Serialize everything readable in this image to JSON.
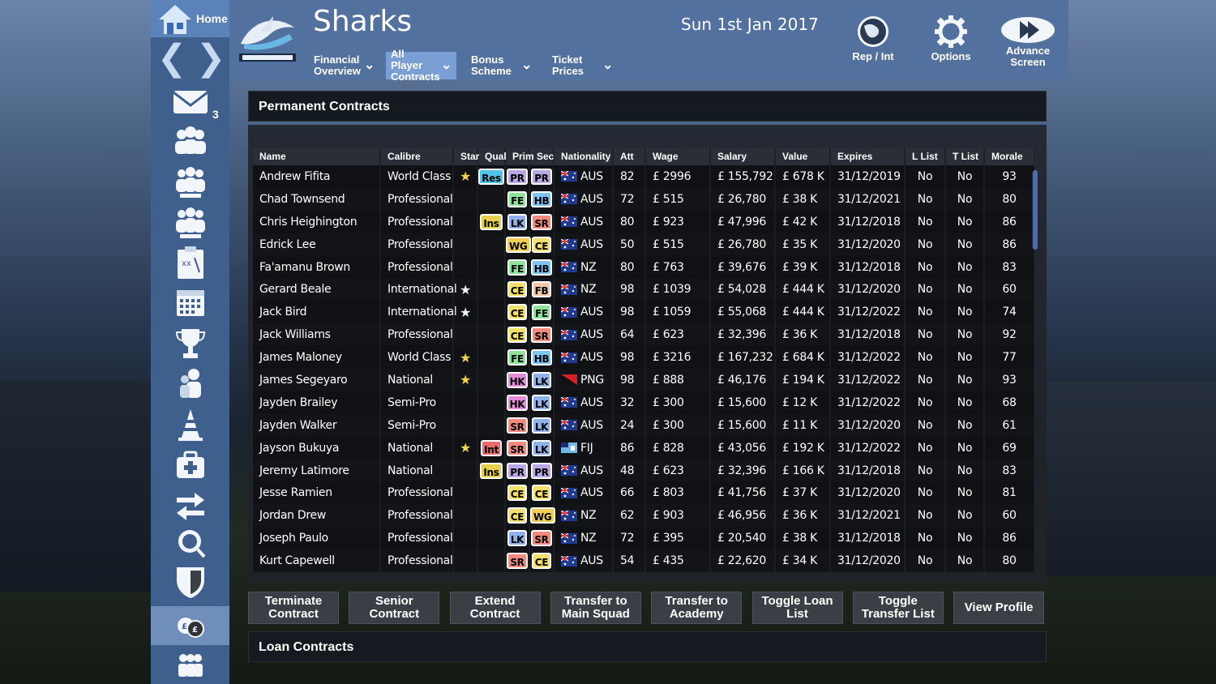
{
  "club": {
    "name": "Sharks"
  },
  "date": "Sun 1st Jan 2017",
  "sidebar": {
    "home_label": "Home",
    "inbox_count": "3",
    "icons": [
      "mail-icon",
      "squad-icon",
      "academy-icon",
      "alliance-icon",
      "tactics-icon",
      "calendar-icon",
      "trophy-icon",
      "staff-icon",
      "training-cone-icon",
      "medical-icon",
      "transfers-icon",
      "scouting-icon",
      "club-icon",
      "finance-icon",
      "people-icon"
    ]
  },
  "tabs": [
    {
      "label": "Financial Overview"
    },
    {
      "label": "All Player Contracts"
    },
    {
      "label": "Bonus Scheme"
    },
    {
      "label": "Ticket Prices"
    }
  ],
  "top_actions": {
    "rep_int": "Rep / Int",
    "options": "Options",
    "advance": "Advance Screen"
  },
  "panels": {
    "permanent": "Permanent Contracts",
    "loan": "Loan Contracts"
  },
  "columns": [
    "Name",
    "Calibre",
    "Star",
    "Qual",
    "Prim",
    "Sec",
    "Nationality",
    "Att",
    "Wage",
    "Salary",
    "Value",
    "Expires",
    "L List",
    "T List",
    "Morale"
  ],
  "rows": [
    {
      "name": "Andrew Fifita",
      "calibre": "World Class",
      "star": "gold",
      "qual": "Res",
      "prim": "PR",
      "sec": "PR",
      "nat": "AUS",
      "att": "82",
      "wage": "£ 2996",
      "salary": "£ 155,792",
      "value": "£ 678 K",
      "expires": "31/12/2019",
      "llist": "No",
      "tlist": "No",
      "morale": "93"
    },
    {
      "name": "Chad Townsend",
      "calibre": "Professional",
      "star": "",
      "qual": "",
      "prim": "FE",
      "sec": "HB",
      "nat": "AUS",
      "att": "72",
      "wage": "£ 515",
      "salary": "£ 26,780",
      "value": "£ 38 K",
      "expires": "31/12/2021",
      "llist": "No",
      "tlist": "No",
      "morale": "80"
    },
    {
      "name": "Chris Heighington",
      "calibre": "Professional",
      "star": "",
      "qual": "Ins",
      "prim": "LK",
      "sec": "SR",
      "nat": "AUS",
      "att": "80",
      "wage": "£ 923",
      "salary": "£ 47,996",
      "value": "£ 42 K",
      "expires": "31/12/2018",
      "llist": "No",
      "tlist": "No",
      "morale": "86"
    },
    {
      "name": "Edrick Lee",
      "calibre": "Professional",
      "star": "",
      "qual": "",
      "prim": "WG",
      "sec": "CE",
      "nat": "AUS",
      "att": "50",
      "wage": "£ 515",
      "salary": "£ 26,780",
      "value": "£ 35 K",
      "expires": "31/12/2020",
      "llist": "No",
      "tlist": "No",
      "morale": "86"
    },
    {
      "name": "Fa'amanu Brown",
      "calibre": "Professional",
      "star": "",
      "qual": "",
      "prim": "FE",
      "sec": "HB",
      "nat": "NZ",
      "att": "80",
      "wage": "£ 763",
      "salary": "£ 39,676",
      "value": "£ 39 K",
      "expires": "31/12/2018",
      "llist": "No",
      "tlist": "No",
      "morale": "83"
    },
    {
      "name": "Gerard Beale",
      "calibre": "International",
      "star": "white",
      "qual": "",
      "prim": "CE",
      "sec": "FB",
      "nat": "NZ",
      "att": "98",
      "wage": "£ 1039",
      "salary": "£ 54,028",
      "value": "£ 444 K",
      "expires": "31/12/2020",
      "llist": "No",
      "tlist": "No",
      "morale": "60"
    },
    {
      "name": "Jack Bird",
      "calibre": "International",
      "star": "white",
      "qual": "",
      "prim": "CE",
      "sec": "FE",
      "nat": "AUS",
      "att": "98",
      "wage": "£ 1059",
      "salary": "£ 55,068",
      "value": "£ 444 K",
      "expires": "31/12/2022",
      "llist": "No",
      "tlist": "No",
      "morale": "74"
    },
    {
      "name": "Jack Williams",
      "calibre": "Professional",
      "star": "",
      "qual": "",
      "prim": "CE",
      "sec": "SR",
      "nat": "AUS",
      "att": "64",
      "wage": "£ 623",
      "salary": "£ 32,396",
      "value": "£ 36 K",
      "expires": "31/12/2018",
      "llist": "No",
      "tlist": "No",
      "morale": "92"
    },
    {
      "name": "James Maloney",
      "calibre": "World Class",
      "star": "gold",
      "qual": "",
      "prim": "FE",
      "sec": "HB",
      "nat": "AUS",
      "att": "98",
      "wage": "£ 3216",
      "salary": "£ 167,232",
      "value": "£ 684 K",
      "expires": "31/12/2022",
      "llist": "No",
      "tlist": "No",
      "morale": "77"
    },
    {
      "name": "James Segeyaro",
      "calibre": "National",
      "star": "gold",
      "qual": "",
      "prim": "HK",
      "sec": "LK",
      "nat": "PNG",
      "att": "98",
      "wage": "£ 888",
      "salary": "£ 46,176",
      "value": "£ 194 K",
      "expires": "31/12/2022",
      "llist": "No",
      "tlist": "No",
      "morale": "93"
    },
    {
      "name": "Jayden Brailey",
      "calibre": "Semi-Pro",
      "star": "",
      "qual": "",
      "prim": "HK",
      "sec": "LK",
      "nat": "AUS",
      "att": "32",
      "wage": "£ 300",
      "salary": "£ 15,600",
      "value": "£ 12 K",
      "expires": "31/12/2022",
      "llist": "No",
      "tlist": "No",
      "morale": "68"
    },
    {
      "name": "Jayden Walker",
      "calibre": "Semi-Pro",
      "star": "",
      "qual": "",
      "prim": "SR",
      "sec": "LK",
      "nat": "AUS",
      "att": "24",
      "wage": "£ 300",
      "salary": "£ 15,600",
      "value": "£ 11 K",
      "expires": "31/12/2020",
      "llist": "No",
      "tlist": "No",
      "morale": "61"
    },
    {
      "name": "Jayson Bukuya",
      "calibre": "National",
      "star": "gold",
      "qual": "Int",
      "prim": "SR",
      "sec": "LK",
      "nat": "FIJ",
      "att": "86",
      "wage": "£ 828",
      "salary": "£ 43,056",
      "value": "£ 192 K",
      "expires": "31/12/2022",
      "llist": "No",
      "tlist": "No",
      "morale": "69"
    },
    {
      "name": "Jeremy Latimore",
      "calibre": "National",
      "star": "",
      "qual": "Ins",
      "prim": "PR",
      "sec": "PR",
      "nat": "AUS",
      "att": "48",
      "wage": "£ 623",
      "salary": "£ 32,396",
      "value": "£ 166 K",
      "expires": "31/12/2018",
      "llist": "No",
      "tlist": "No",
      "morale": "83"
    },
    {
      "name": "Jesse Ramien",
      "calibre": "Professional",
      "star": "",
      "qual": "",
      "prim": "CE",
      "sec": "CE",
      "nat": "AUS",
      "att": "66",
      "wage": "£ 803",
      "salary": "£ 41,756",
      "value": "£ 37 K",
      "expires": "31/12/2020",
      "llist": "No",
      "tlist": "No",
      "morale": "81"
    },
    {
      "name": "Jordan Drew",
      "calibre": "Professional",
      "star": "",
      "qual": "",
      "prim": "CE",
      "sec": "WG",
      "nat": "NZ",
      "att": "62",
      "wage": "£ 903",
      "salary": "£ 46,956",
      "value": "£ 36 K",
      "expires": "31/12/2021",
      "llist": "No",
      "tlist": "No",
      "morale": "60"
    },
    {
      "name": "Joseph Paulo",
      "calibre": "Professional",
      "star": "",
      "qual": "",
      "prim": "LK",
      "sec": "SR",
      "nat": "NZ",
      "att": "72",
      "wage": "£ 395",
      "salary": "£ 20,540",
      "value": "£ 38 K",
      "expires": "31/12/2018",
      "llist": "No",
      "tlist": "No",
      "morale": "86"
    },
    {
      "name": "Kurt Capewell",
      "calibre": "Professional",
      "star": "",
      "qual": "",
      "prim": "SR",
      "sec": "CE",
      "nat": "AUS",
      "att": "54",
      "wage": "£ 435",
      "salary": "£ 22,620",
      "value": "£ 34 K",
      "expires": "31/12/2020",
      "llist": "No",
      "tlist": "No",
      "morale": "80"
    }
  ],
  "actions": [
    "Terminate Contract",
    "Senior Contract",
    "Extend Contract",
    "Transfer to Main Squad",
    "Transfer to Academy",
    "Toggle Loan List",
    "Toggle Transfer List",
    "View Profile"
  ],
  "colors": {
    "sidebar": "#3f5f8d",
    "topbar": "#52719e",
    "tab_active": "#7a9fd4",
    "pos_PR": "#b9a7e6",
    "pos_FE": "#8fe39a",
    "pos_HB": "#7fc4f2",
    "pos_LK": "#8fb2ea",
    "pos_SR": "#f48a7e",
    "pos_WG": "#f1cf57",
    "pos_CE": "#f4e06d",
    "pos_FB": "#f4c6a6",
    "pos_HK": "#e58bd8",
    "qual_Res": "#4fc3e8",
    "qual_Ins": "#e7d04e",
    "qual_Int": "#e86c6c"
  }
}
